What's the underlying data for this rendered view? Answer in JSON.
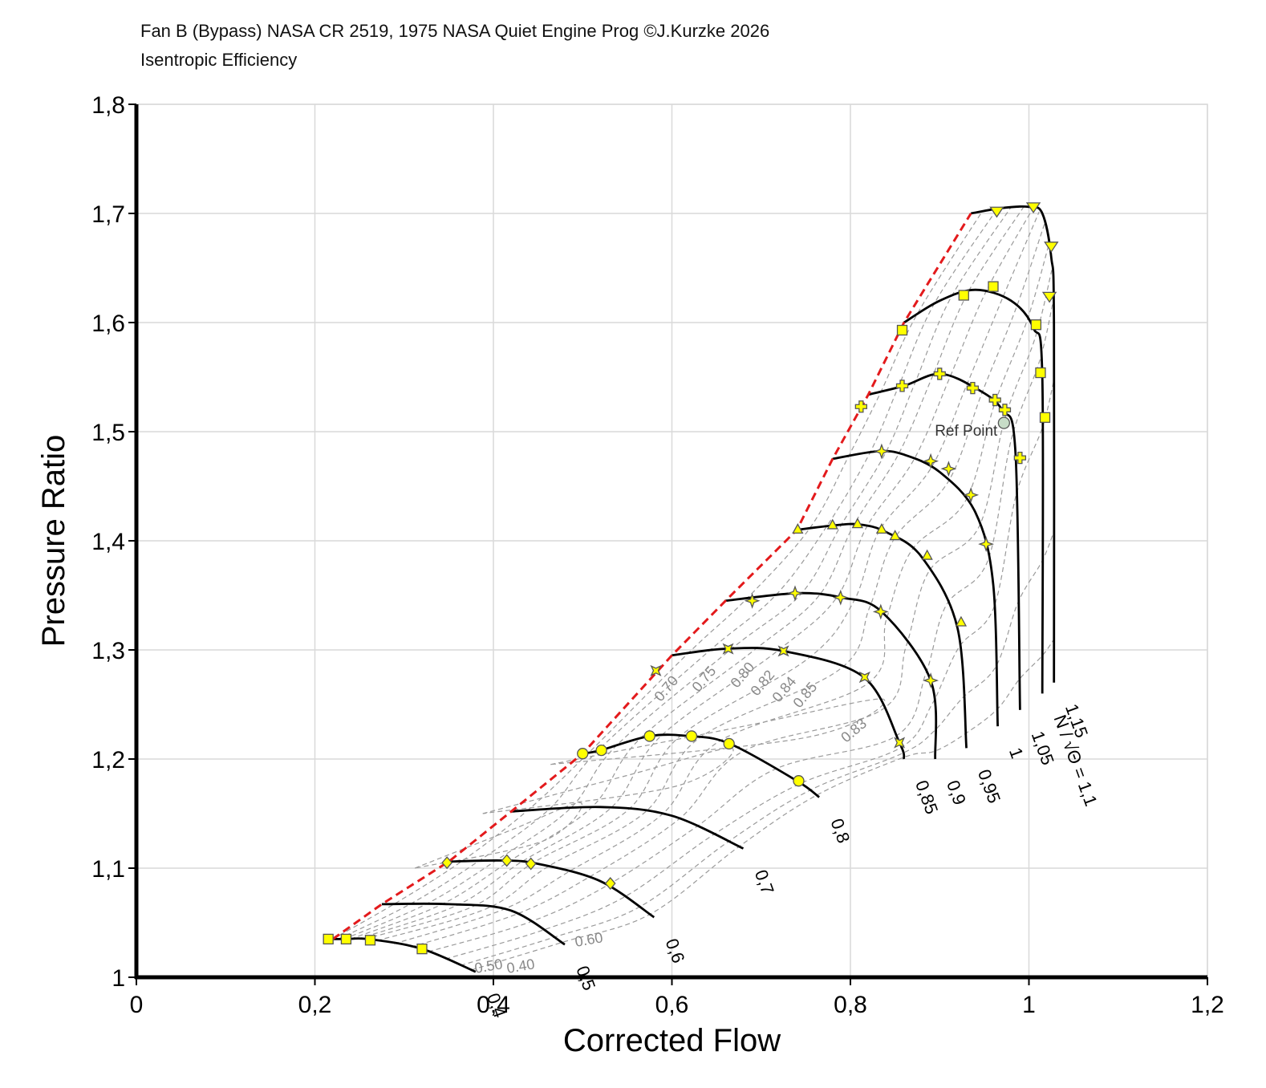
{
  "header": {
    "title": "Fan B (Bypass) NASA CR 2519, 1975 NASA Quiet Engine Prog ©J.Kurzke 2026",
    "subtitle": "Isentropic Efficiency"
  },
  "colors": {
    "speed_line": "#000000",
    "surge_line": "#e31a1c",
    "efficiency_contour": "#9a9a9a",
    "marker_fill": "#ffff00",
    "marker_stroke": "#555555",
    "ref_point_fill": "#c7dcc7",
    "grid": "#d9d9d9"
  },
  "chart_data": {
    "type": "line",
    "title": "Isentropic Efficiency",
    "xlabel": "Corrected Flow",
    "ylabel": "Pressure Ratio",
    "xlim": [
      0,
      1.2
    ],
    "ylim": [
      1,
      1.8
    ],
    "x_ticks": [
      "0",
      "0,2",
      "0,4",
      "0,6",
      "0,8",
      "1",
      "1,2"
    ],
    "y_ticks": [
      "1",
      "1,1",
      "1,2",
      "1,3",
      "1,4",
      "1,5",
      "1,6",
      "1,7",
      "1,8"
    ],
    "grid": true,
    "speed_label_prefix": "N / √Θ =",
    "speed_lines": [
      {
        "label": "0,4",
        "marker": "square",
        "points": [
          [
            0.215,
            1.035
          ],
          [
            0.235,
            1.035
          ],
          [
            0.26,
            1.035
          ],
          [
            0.32,
            1.026
          ],
          [
            0.38,
            1.005
          ]
        ],
        "samples": [
          [
            0.215,
            1.035
          ],
          [
            0.235,
            1.035
          ],
          [
            0.262,
            1.034
          ],
          [
            0.32,
            1.026
          ]
        ]
      },
      {
        "label": "0,5",
        "marker": "none",
        "points": [
          [
            0.275,
            1.067
          ],
          [
            0.35,
            1.067
          ],
          [
            0.42,
            1.061
          ],
          [
            0.48,
            1.03
          ]
        ],
        "samples": []
      },
      {
        "label": "0,6",
        "marker": "diamond",
        "points": [
          [
            0.35,
            1.106
          ],
          [
            0.41,
            1.107
          ],
          [
            0.45,
            1.104
          ],
          [
            0.52,
            1.088
          ],
          [
            0.58,
            1.055
          ]
        ],
        "samples": [
          [
            0.348,
            1.105
          ],
          [
            0.415,
            1.107
          ],
          [
            0.442,
            1.104
          ],
          [
            0.531,
            1.086
          ]
        ]
      },
      {
        "label": "0,7",
        "marker": "none",
        "points": [
          [
            0.42,
            1.152
          ],
          [
            0.52,
            1.156
          ],
          [
            0.6,
            1.148
          ],
          [
            0.68,
            1.118
          ]
        ],
        "samples": []
      },
      {
        "label": "0,8",
        "marker": "circle",
        "points": [
          [
            0.5,
            1.205
          ],
          [
            0.52,
            1.208
          ],
          [
            0.575,
            1.221
          ],
          [
            0.62,
            1.221
          ],
          [
            0.665,
            1.214
          ],
          [
            0.74,
            1.18
          ],
          [
            0.765,
            1.165
          ]
        ],
        "samples": [
          [
            0.5,
            1.205
          ],
          [
            0.521,
            1.208
          ],
          [
            0.575,
            1.221
          ],
          [
            0.622,
            1.221
          ],
          [
            0.664,
            1.214
          ],
          [
            0.742,
            1.18
          ]
        ]
      },
      {
        "label": "0,85",
        "marker": "star",
        "points": [
          [
            0.6,
            1.295
          ],
          [
            0.66,
            1.301
          ],
          [
            0.725,
            1.299
          ],
          [
            0.815,
            1.275
          ],
          [
            0.855,
            1.215
          ],
          [
            0.86,
            1.2
          ]
        ],
        "samples": [
          [
            0.582,
            1.281
          ],
          [
            0.663,
            1.301
          ],
          [
            0.725,
            1.299
          ],
          [
            0.816,
            1.275
          ],
          [
            0.855,
            1.215
          ]
        ]
      },
      {
        "label": "0,9",
        "marker": "x-star",
        "points": [
          [
            0.66,
            1.345
          ],
          [
            0.74,
            1.352
          ],
          [
            0.79,
            1.348
          ],
          [
            0.835,
            1.335
          ],
          [
            0.89,
            1.272
          ],
          [
            0.895,
            1.2
          ]
        ],
        "samples": [
          [
            0.69,
            1.345
          ],
          [
            0.738,
            1.352
          ],
          [
            0.789,
            1.348
          ],
          [
            0.834,
            1.335
          ],
          [
            0.89,
            1.272
          ]
        ]
      },
      {
        "label": "0,95",
        "marker": "triangle-up",
        "points": [
          [
            0.74,
            1.41
          ],
          [
            0.78,
            1.414
          ],
          [
            0.81,
            1.415
          ],
          [
            0.84,
            1.408
          ],
          [
            0.88,
            1.385
          ],
          [
            0.92,
            1.32
          ],
          [
            0.93,
            1.21
          ]
        ],
        "samples": [
          [
            0.741,
            1.41
          ],
          [
            0.78,
            1.414
          ],
          [
            0.808,
            1.415
          ],
          [
            0.835,
            1.41
          ],
          [
            0.85,
            1.404
          ],
          [
            0.886,
            1.386
          ],
          [
            0.924,
            1.325
          ]
        ]
      },
      {
        "label": "1",
        "marker": "x-cross",
        "points": [
          [
            0.78,
            1.475
          ],
          [
            0.83,
            1.482
          ],
          [
            0.86,
            1.479
          ],
          [
            0.9,
            1.463
          ],
          [
            0.94,
            1.426
          ],
          [
            0.96,
            1.36
          ],
          [
            0.965,
            1.23
          ]
        ],
        "samples": [
          [
            0.835,
            1.482
          ],
          [
            0.89,
            1.473
          ],
          [
            0.91,
            1.466
          ],
          [
            0.935,
            1.442
          ],
          [
            0.952,
            1.397
          ]
        ]
      },
      {
        "label": "1,05",
        "marker": "plus",
        "points": [
          [
            0.82,
            1.534
          ],
          [
            0.86,
            1.542
          ],
          [
            0.9,
            1.553
          ],
          [
            0.94,
            1.54
          ],
          [
            0.97,
            1.52
          ],
          [
            0.985,
            1.48
          ],
          [
            0.99,
            1.245
          ]
        ],
        "samples": [
          [
            0.812,
            1.523
          ],
          [
            0.858,
            1.542
          ],
          [
            0.9,
            1.553
          ],
          [
            0.937,
            1.54
          ],
          [
            0.962,
            1.529
          ],
          [
            0.973,
            1.52
          ],
          [
            0.99,
            1.476
          ]
        ]
      },
      {
        "label": "1,1",
        "marker": "square",
        "points": [
          [
            0.86,
            1.6
          ],
          [
            0.9,
            1.62
          ],
          [
            0.94,
            1.63
          ],
          [
            0.98,
            1.62
          ],
          [
            1.005,
            1.595
          ],
          [
            1.015,
            1.55
          ],
          [
            1.015,
            1.26
          ]
        ],
        "samples": [
          [
            0.858,
            1.593
          ],
          [
            0.927,
            1.625
          ],
          [
            0.96,
            1.633
          ],
          [
            1.008,
            1.598
          ],
          [
            1.013,
            1.554
          ],
          [
            1.018,
            1.513
          ]
        ]
      },
      {
        "label": "1,15",
        "marker": "triangle-down",
        "points": [
          [
            0.935,
            1.7
          ],
          [
            0.97,
            1.705
          ],
          [
            1.0,
            1.706
          ],
          [
            1.015,
            1.7
          ],
          [
            1.025,
            1.66
          ],
          [
            1.028,
            1.6
          ],
          [
            1.028,
            1.27
          ]
        ],
        "samples": [
          [
            0.964,
            1.702
          ],
          [
            1.005,
            1.706
          ],
          [
            1.025,
            1.67
          ],
          [
            1.023,
            1.624
          ]
        ]
      }
    ],
    "surge_line": [
      [
        0.22,
        1.035
      ],
      [
        0.275,
        1.067
      ],
      [
        0.35,
        1.106
      ],
      [
        0.42,
        1.152
      ],
      [
        0.5,
        1.205
      ],
      [
        0.6,
        1.295
      ],
      [
        0.66,
        1.345
      ],
      [
        0.74,
        1.41
      ],
      [
        0.78,
        1.475
      ],
      [
        0.82,
        1.534
      ],
      [
        0.86,
        1.6
      ],
      [
        0.935,
        1.7
      ]
    ],
    "ref_point": {
      "label": "Ref Point",
      "x": 0.972,
      "y": 1.508
    },
    "efficiency_contour_labels": [
      "0.40",
      "0.50",
      "0.60",
      "0.70",
      "0.75",
      "0.80",
      "0.82",
      "0.84",
      "0.85",
      "0.83"
    ]
  }
}
